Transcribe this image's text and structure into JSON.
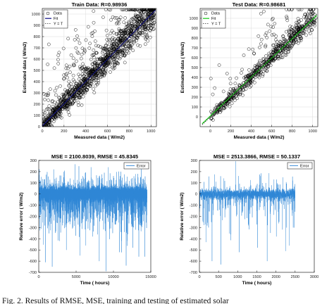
{
  "caption": "Fig. 2.  Results of RMSE, MSE, training and testing of estimated solar",
  "chart_data": [
    {
      "type": "scatter",
      "title": "Train Data: R=0.98936",
      "xlabel": "Measured data ( W/m2)",
      "ylabel": "Estimated data ( W/m2)",
      "xlim": [
        0,
        1050
      ],
      "ylim": [
        0,
        1050
      ],
      "xticks": [
        "0",
        "200",
        "400",
        "600",
        "800",
        "1000"
      ],
      "yticks": [
        "0",
        "100",
        "200",
        "300",
        "400",
        "500",
        "600",
        "700",
        "800",
        "900",
        "1000"
      ],
      "grid": true,
      "legend_position": "top-left",
      "legend": [
        "Data",
        "Fit",
        "Y = T"
      ],
      "series": [
        {
          "name": "Data",
          "marker": "open-circle",
          "color": "#000000",
          "pattern": "dense cloud along y = x, wider above the diagonal",
          "n_points": 1400,
          "x_range": [
            0,
            1030
          ],
          "y_range": [
            0,
            1050
          ]
        },
        {
          "name": "Fit",
          "color": "#1a1a8c",
          "x": [
            0,
            1040
          ],
          "y": [
            5,
            1035
          ]
        },
        {
          "name": "Y = T",
          "color": "#000000",
          "style": "dotted",
          "x": [
            0,
            1040
          ],
          "y": [
            0,
            1040
          ]
        }
      ]
    },
    {
      "type": "scatter",
      "title": "Test Data: R=0.98681",
      "xlabel": "Measured data ( W/m2)",
      "ylabel": "Estimated data ( W/m2)",
      "xlim": [
        -100,
        1050
      ],
      "ylim": [
        -100,
        1100
      ],
      "xticks": [
        "0",
        "200",
        "400",
        "600",
        "800",
        "1000"
      ],
      "yticks": [
        "0",
        "100",
        "200",
        "300",
        "400",
        "500",
        "600",
        "700",
        "800",
        "900",
        "1000"
      ],
      "grid": true,
      "legend_position": "top-left",
      "legend": [
        "Data",
        "Fit",
        "Y = T"
      ],
      "series": [
        {
          "name": "Data",
          "marker": "open-circle",
          "color": "#000000",
          "pattern": "dense band along y = x with outliers above",
          "n_points": 700,
          "x_range": [
            0,
            1030
          ],
          "y_range": [
            -80,
            1060
          ]
        },
        {
          "name": "Fit",
          "color": "#22cc22",
          "x": [
            -80,
            1040
          ],
          "y": [
            -70,
            1030
          ]
        },
        {
          "name": "Y = T",
          "color": "#000000",
          "style": "dotted",
          "x": [
            -80,
            1040
          ],
          "y": [
            -80,
            1040
          ]
        }
      ]
    },
    {
      "type": "line",
      "title": "MSE = 2100.8039, RMSE = 45.8345",
      "xlabel": "Time ( hours)",
      "ylabel": "Relative error ( W/m2)",
      "xlim": [
        0,
        15000
      ],
      "ylim": [
        -700,
        300
      ],
      "xticks": [
        "0",
        "5000",
        "10000",
        "15000"
      ],
      "yticks": [
        "-700",
        "-600",
        "-500",
        "-400",
        "-300",
        "-200",
        "-100",
        "0",
        "100",
        "200",
        "300"
      ],
      "grid": false,
      "legend_position": "top-right",
      "legend": [
        "Error"
      ],
      "series": [
        {
          "name": "Error",
          "color": "#2f86d6",
          "n": 14500,
          "pattern": "noise mostly within ±60 with frequent negative spikes",
          "baseline_range": [
            -60,
            60
          ],
          "max": 240,
          "min": -690,
          "spikes": [
            [
              900,
              -610
            ],
            [
              1800,
              -650
            ],
            [
              2800,
              -420
            ],
            [
              3700,
              -500
            ],
            [
              4600,
              -300
            ],
            [
              5500,
              -550
            ],
            [
              6300,
              -460
            ],
            [
              7200,
              -380
            ],
            [
              8100,
              -600
            ],
            [
              9000,
              -690
            ],
            [
              9900,
              -350
            ],
            [
              10800,
              -520
            ],
            [
              11700,
              -640
            ],
            [
              12600,
              -480
            ],
            [
              13400,
              -560
            ],
            [
              14200,
              -560
            ],
            [
              2000,
              220
            ],
            [
              7000,
              240
            ],
            [
              11000,
              200
            ]
          ]
        }
      ]
    },
    {
      "type": "line",
      "title": "MSE = 2513.3866, RMSE = 50.1337",
      "xlabel": "Time ( hours)",
      "ylabel": "Relative error ( W/m2)",
      "xlim": [
        0,
        3000
      ],
      "ylim": [
        -700,
        300
      ],
      "xticks": [
        "0",
        "500",
        "1000",
        "1500",
        "2000",
        "2500",
        "3000"
      ],
      "yticks": [
        "-700",
        "-600",
        "-500",
        "-400",
        "-300",
        "-200",
        "-100",
        "0",
        "100",
        "200",
        "300"
      ],
      "grid": false,
      "legend_position": "top-right",
      "legend": [
        "Error"
      ],
      "series": [
        {
          "name": "Error",
          "color": "#2f86d6",
          "n": 2500,
          "pattern": "noise mostly within ±50 with scattered negative spikes",
          "baseline_range": [
            -50,
            50
          ],
          "max": 160,
          "min": -640,
          "spikes": [
            [
              170,
              -430
            ],
            [
              330,
              -600
            ],
            [
              560,
              -630
            ],
            [
              820,
              -360
            ],
            [
              1040,
              -520
            ],
            [
              1280,
              -270
            ],
            [
              1520,
              -480
            ],
            [
              1770,
              -600
            ],
            [
              2010,
              -380
            ],
            [
              2250,
              -510
            ],
            [
              2450,
              -300
            ],
            [
              640,
              140
            ],
            [
              1600,
              160
            ]
          ]
        }
      ]
    }
  ]
}
